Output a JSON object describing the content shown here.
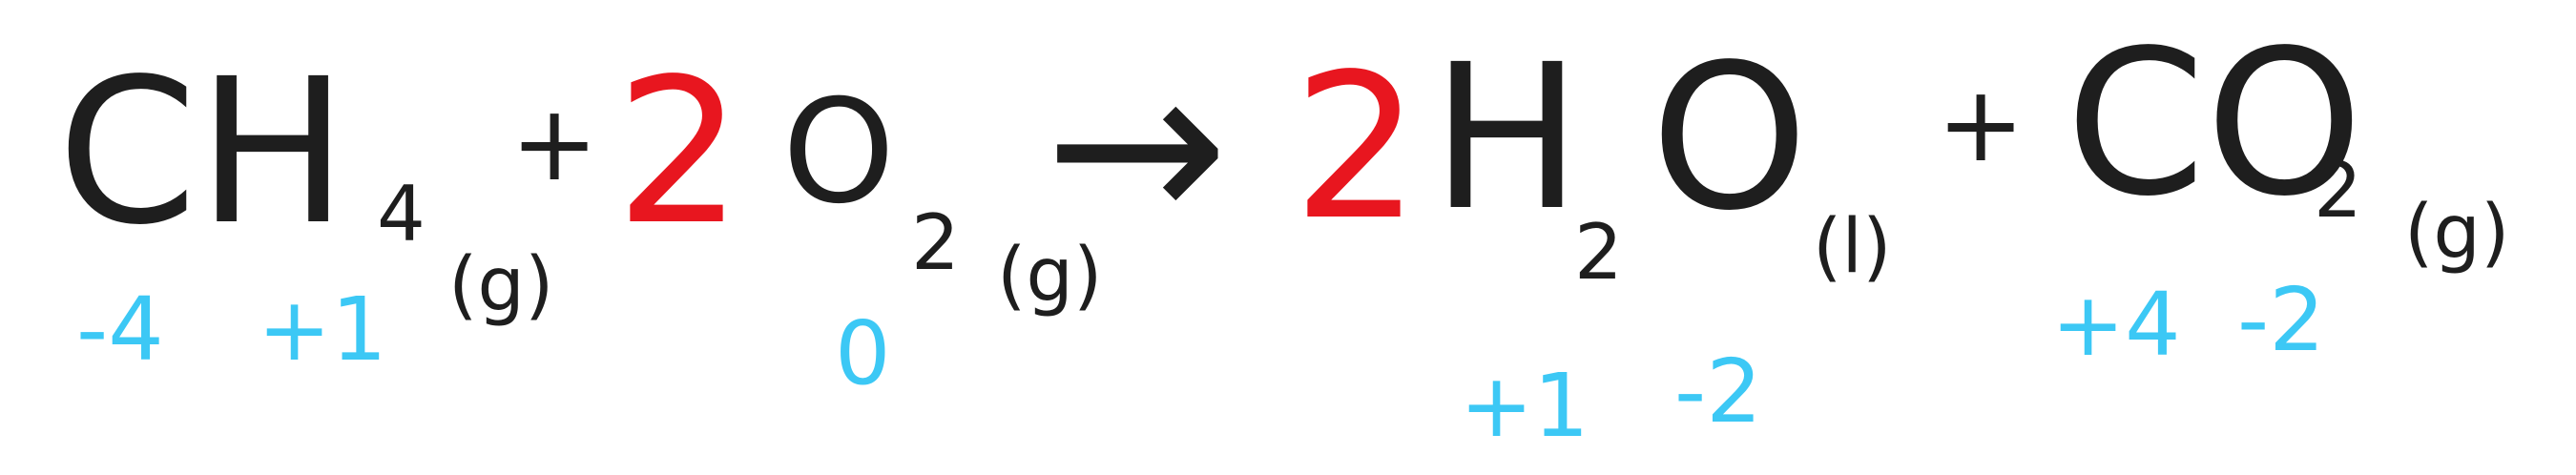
{
  "colors": {
    "ink": "#1e1e1e",
    "coefficient": "#e8161f",
    "oxidation": "#3cc8f5"
  },
  "reactant_1": {
    "formula": "CH",
    "subscript": "4",
    "state": "(g)",
    "ox_c": "-4",
    "ox_h": "+1"
  },
  "plus_1": "+",
  "reactant_2": {
    "coefficient": "2",
    "formula": "O",
    "subscript": "2",
    "state": "(g)",
    "ox_o": "0"
  },
  "arrow": "→",
  "product_1": {
    "coefficient": "2",
    "formula_h": "H",
    "subscript": "2",
    "formula_o": "O",
    "state": "(l)",
    "ox_h": "+1",
    "ox_o": "-2"
  },
  "plus_2": "+",
  "product_2": {
    "formula": "CO",
    "subscript": "2",
    "state": "(g)",
    "ox_c": "+4",
    "ox_o": "-2"
  }
}
